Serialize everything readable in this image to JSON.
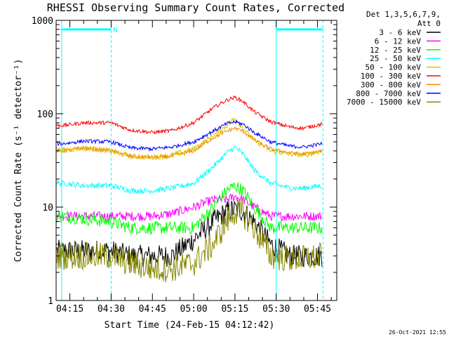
{
  "chart_data": {
    "type": "line",
    "title": "RHESSI Observing Summary Count Rates, Corrected",
    "xlabel": "Start Time (24-Feb-15 04:12:42)",
    "ylabel": "Corrected Count Rate (s⁻¹ detector⁻¹)",
    "y_scale": "log",
    "ylim": [
      1,
      1000
    ],
    "y_ticks": [
      "1",
      "10",
      "100",
      "1000"
    ],
    "xlim": [
      "04:10",
      "05:52"
    ],
    "x_ticks": [
      "04:15",
      "04:30",
      "04:45",
      "05:00",
      "05:15",
      "05:30",
      "05:45"
    ],
    "legend_header": [
      "Det 1,3,5,6,7,9,",
      "Att 0"
    ],
    "legend_position": "right",
    "timestamp": "26-Oct-2021 12:55",
    "flag_label": "N",
    "markers": {
      "solid_vertical": [
        "04:12",
        "05:30"
      ],
      "dashed_vertical": [
        "04:30",
        "05:47"
      ],
      "flag_bars": [
        {
          "from": "04:12",
          "to": "04:30",
          "y": 800
        },
        {
          "from": "05:30",
          "to": "05:47",
          "y": 800
        }
      ]
    },
    "x": [
      "04:13",
      "04:20",
      "04:30",
      "04:37",
      "04:45",
      "04:52",
      "05:00",
      "05:07",
      "05:12",
      "05:15",
      "05:18",
      "05:22",
      "05:28",
      "05:35",
      "05:40",
      "05:47"
    ],
    "series": [
      {
        "name": "3 - 6 keV",
        "color": "#000000",
        "noise": 0.12,
        "values": [
          3.4,
          3.4,
          3.4,
          3,
          3,
          3,
          4.5,
          7,
          9,
          9.5,
          9,
          7,
          4,
          3,
          3,
          3
        ]
      },
      {
        "name": "6 - 12 keV",
        "color": "#ff00ff",
        "noise": 0.05,
        "values": [
          8,
          8,
          8,
          8,
          8,
          8.5,
          10,
          12,
          12,
          13,
          12,
          10,
          8,
          8,
          8,
          8
        ]
      },
      {
        "name": "12 - 25 keV",
        "color": "#00ff00",
        "noise": 0.07,
        "values": [
          8,
          7.5,
          7,
          6,
          6,
          6,
          6,
          10,
          15,
          17,
          15,
          10,
          6,
          6,
          6,
          6
        ]
      },
      {
        "name": "25 - 50 keV",
        "color": "#00ffff",
        "noise": 0.03,
        "values": [
          18,
          17,
          17,
          15,
          15,
          16,
          18,
          27,
          38,
          44,
          37,
          25,
          18,
          16,
          16,
          17
        ]
      },
      {
        "name": "50 - 100 keV",
        "color": "#cccc00",
        "noise": 0.03,
        "values": [
          41,
          43,
          40,
          35,
          34,
          36,
          42,
          58,
          75,
          90,
          70,
          52,
          40,
          37,
          36,
          40
        ]
      },
      {
        "name": "100 - 300 keV",
        "color": "#ff0000",
        "noise": 0.02,
        "values": [
          75,
          80,
          80,
          67,
          63,
          66,
          80,
          115,
          140,
          150,
          135,
          105,
          82,
          72,
          70,
          78
        ]
      },
      {
        "name": "300 - 800 keV",
        "color": "#ff8800",
        "noise": 0.02,
        "values": [
          40,
          43,
          40,
          35,
          34,
          35,
          40,
          55,
          65,
          70,
          65,
          52,
          42,
          38,
          37,
          40
        ]
      },
      {
        "name": "800 - 7000 keV",
        "color": "#0000ff",
        "noise": 0.02,
        "values": [
          48,
          51,
          50,
          43,
          42,
          44,
          50,
          65,
          78,
          82,
          77,
          63,
          50,
          45,
          44,
          48
        ]
      },
      {
        "name": "7000 - 15000 keV",
        "color": "#888800",
        "noise": 0.15,
        "values": [
          3,
          3,
          3,
          2.5,
          2.2,
          2.2,
          2.5,
          4,
          7,
          9,
          8.5,
          6,
          3,
          2.8,
          2.8,
          3
        ]
      }
    ]
  },
  "colors": {
    "axis": "#000000",
    "marker": "#00ffff",
    "background": "#ffffff"
  }
}
